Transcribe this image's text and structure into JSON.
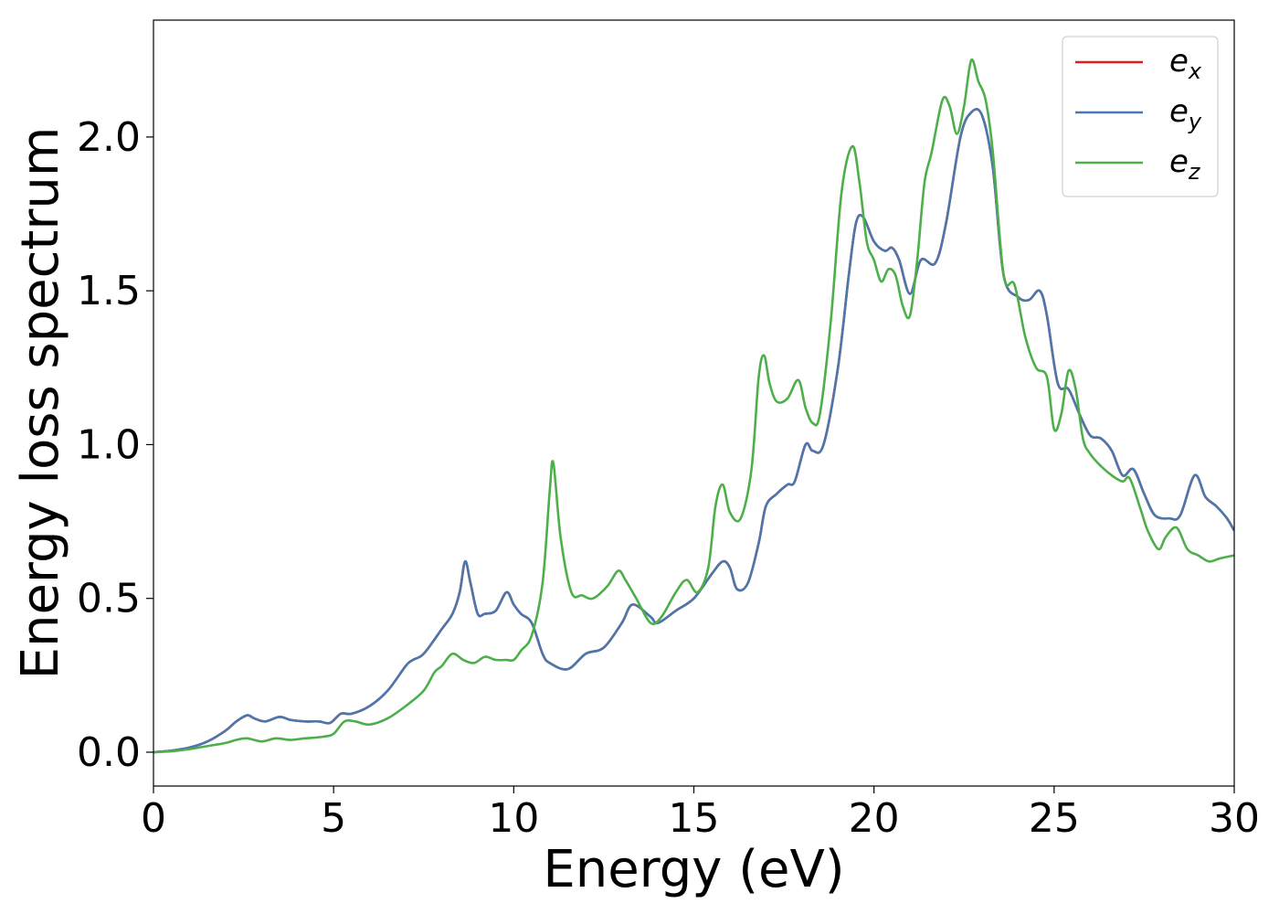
{
  "chart_data": {
    "type": "line",
    "xlabel": "Energy (eV)",
    "ylabel": "Energy loss spectrum",
    "xlim": [
      0,
      30
    ],
    "ylim": [
      -0.11,
      2.38
    ],
    "xticks": [
      0,
      5,
      10,
      15,
      20,
      25,
      30
    ],
    "xtick_labels": [
      "0",
      "5",
      "10",
      "15",
      "20",
      "25",
      "30"
    ],
    "yticks": [
      0.0,
      0.5,
      1.0,
      1.5,
      2.0
    ],
    "ytick_labels": [
      "0.0",
      "0.5",
      "1.0",
      "1.5",
      "2.0"
    ],
    "grid": false,
    "legend_position": "top-right",
    "series": [
      {
        "name": "e_x",
        "legend_base": "e",
        "legend_sub": "x",
        "color": "#e41a1c",
        "x": [
          0,
          0.5,
          1,
          1.5,
          2,
          2.3,
          2.6,
          2.8,
          3.1,
          3.5,
          3.8,
          4.2,
          4.6,
          4.9,
          5.2,
          5.5,
          6,
          6.5,
          7,
          7.2,
          7.5,
          8,
          8.3,
          8.5,
          8.65,
          8.8,
          9.0,
          9.2,
          9.5,
          9.8,
          10.0,
          10.2,
          10.5,
          10.8,
          11.0,
          11.5,
          12,
          12.5,
          13.0,
          13.3,
          13.8,
          14.0,
          14.5,
          15.0,
          15.5,
          15.8,
          16.0,
          16.2,
          16.5,
          16.8,
          17.0,
          17.3,
          17.6,
          17.8,
          18.1,
          18.3,
          18.6,
          19.0,
          19.3,
          19.5,
          19.7,
          20.0,
          20.3,
          20.5,
          20.7,
          21.0,
          21.3,
          21.7,
          22.0,
          22.4,
          22.7,
          23.0,
          23.3,
          23.6,
          24.0,
          24.3,
          24.6,
          24.8,
          25.1,
          25.4,
          25.7,
          26.0,
          26.3,
          26.6,
          26.9,
          27.2,
          27.5,
          27.8,
          28.2,
          28.5,
          28.9,
          29.2,
          29.5,
          29.8,
          30
        ],
        "y": [
          0,
          0.005,
          0.015,
          0.035,
          0.07,
          0.1,
          0.12,
          0.11,
          0.1,
          0.115,
          0.105,
          0.1,
          0.1,
          0.095,
          0.125,
          0.125,
          0.15,
          0.2,
          0.28,
          0.3,
          0.32,
          0.4,
          0.45,
          0.52,
          0.62,
          0.55,
          0.45,
          0.45,
          0.46,
          0.52,
          0.48,
          0.45,
          0.42,
          0.32,
          0.29,
          0.27,
          0.32,
          0.34,
          0.42,
          0.48,
          0.44,
          0.42,
          0.46,
          0.5,
          0.58,
          0.62,
          0.6,
          0.53,
          0.55,
          0.68,
          0.8,
          0.84,
          0.87,
          0.88,
          1.0,
          0.98,
          1.0,
          1.25,
          1.55,
          1.72,
          1.74,
          1.66,
          1.63,
          1.64,
          1.6,
          1.49,
          1.6,
          1.59,
          1.72,
          2.0,
          2.08,
          2.07,
          1.9,
          1.55,
          1.48,
          1.47,
          1.5,
          1.42,
          1.2,
          1.18,
          1.1,
          1.03,
          1.02,
          0.98,
          0.9,
          0.92,
          0.84,
          0.77,
          0.76,
          0.77,
          0.9,
          0.83,
          0.8,
          0.76,
          0.72
        ]
      },
      {
        "name": "e_y",
        "legend_base": "e",
        "legend_sub": "y",
        "color": "#4a78ad",
        "x": [
          0,
          0.5,
          1,
          1.5,
          2,
          2.3,
          2.6,
          2.8,
          3.1,
          3.5,
          3.8,
          4.2,
          4.6,
          4.9,
          5.2,
          5.5,
          6,
          6.5,
          7,
          7.2,
          7.5,
          8,
          8.3,
          8.5,
          8.65,
          8.8,
          9.0,
          9.2,
          9.5,
          9.8,
          10.0,
          10.2,
          10.5,
          10.8,
          11.0,
          11.5,
          12,
          12.5,
          13.0,
          13.3,
          13.8,
          14.0,
          14.5,
          15.0,
          15.5,
          15.8,
          16.0,
          16.2,
          16.5,
          16.8,
          17.0,
          17.3,
          17.6,
          17.8,
          18.1,
          18.3,
          18.6,
          19.0,
          19.3,
          19.5,
          19.7,
          20.0,
          20.3,
          20.5,
          20.7,
          21.0,
          21.3,
          21.7,
          22.0,
          22.4,
          22.7,
          23.0,
          23.3,
          23.6,
          24.0,
          24.3,
          24.6,
          24.8,
          25.1,
          25.4,
          25.7,
          26.0,
          26.3,
          26.6,
          26.9,
          27.2,
          27.5,
          27.8,
          28.2,
          28.5,
          28.9,
          29.2,
          29.5,
          29.8,
          30
        ],
        "y": [
          0,
          0.005,
          0.015,
          0.035,
          0.07,
          0.1,
          0.12,
          0.11,
          0.1,
          0.115,
          0.105,
          0.1,
          0.1,
          0.095,
          0.125,
          0.125,
          0.15,
          0.2,
          0.28,
          0.3,
          0.32,
          0.4,
          0.45,
          0.52,
          0.62,
          0.55,
          0.45,
          0.45,
          0.46,
          0.52,
          0.48,
          0.45,
          0.42,
          0.32,
          0.29,
          0.27,
          0.32,
          0.34,
          0.42,
          0.48,
          0.44,
          0.42,
          0.46,
          0.5,
          0.58,
          0.62,
          0.6,
          0.53,
          0.55,
          0.68,
          0.8,
          0.84,
          0.87,
          0.88,
          1.0,
          0.98,
          1.0,
          1.25,
          1.55,
          1.72,
          1.74,
          1.66,
          1.63,
          1.64,
          1.6,
          1.49,
          1.6,
          1.59,
          1.72,
          2.0,
          2.08,
          2.07,
          1.9,
          1.55,
          1.48,
          1.47,
          1.5,
          1.42,
          1.2,
          1.18,
          1.1,
          1.03,
          1.02,
          0.98,
          0.9,
          0.92,
          0.84,
          0.77,
          0.76,
          0.77,
          0.9,
          0.83,
          0.8,
          0.76,
          0.72
        ]
      },
      {
        "name": "e_z",
        "legend_base": "e",
        "legend_sub": "z",
        "color": "#4daf4a",
        "x": [
          0,
          0.5,
          1,
          1.5,
          2,
          2.3,
          2.6,
          3.0,
          3.4,
          3.8,
          4.2,
          4.7,
          5.0,
          5.3,
          5.6,
          6.0,
          6.5,
          7.0,
          7.5,
          7.8,
          8.0,
          8.3,
          8.6,
          8.9,
          9.2,
          9.5,
          9.8,
          10.0,
          10.2,
          10.5,
          10.8,
          11.0,
          11.1,
          11.3,
          11.6,
          11.9,
          12.2,
          12.6,
          12.9,
          13.1,
          13.4,
          13.8,
          14.1,
          14.5,
          14.8,
          15.1,
          15.4,
          15.6,
          15.8,
          16.0,
          16.3,
          16.6,
          16.8,
          16.95,
          17.1,
          17.3,
          17.6,
          17.9,
          18.1,
          18.3,
          18.5,
          18.8,
          19.1,
          19.4,
          19.6,
          19.8,
          20.0,
          20.2,
          20.4,
          20.6,
          20.8,
          21.0,
          21.2,
          21.4,
          21.6,
          21.9,
          22.1,
          22.3,
          22.5,
          22.7,
          22.9,
          23.1,
          23.3,
          23.6,
          23.9,
          24.2,
          24.5,
          24.8,
          25.0,
          25.2,
          25.4,
          25.6,
          25.8,
          26.0,
          26.3,
          26.6,
          26.9,
          27.1,
          27.4,
          27.6,
          27.9,
          28.1,
          28.4,
          28.7,
          29.0,
          29.3,
          29.6,
          30
        ],
        "y": [
          0,
          0.003,
          0.01,
          0.02,
          0.03,
          0.04,
          0.045,
          0.035,
          0.045,
          0.04,
          0.045,
          0.05,
          0.06,
          0.1,
          0.1,
          0.09,
          0.11,
          0.15,
          0.2,
          0.26,
          0.28,
          0.32,
          0.3,
          0.29,
          0.31,
          0.3,
          0.3,
          0.3,
          0.33,
          0.38,
          0.55,
          0.85,
          0.94,
          0.7,
          0.52,
          0.51,
          0.5,
          0.54,
          0.59,
          0.56,
          0.5,
          0.42,
          0.44,
          0.52,
          0.56,
          0.52,
          0.6,
          0.8,
          0.87,
          0.78,
          0.76,
          0.92,
          1.22,
          1.29,
          1.2,
          1.14,
          1.15,
          1.21,
          1.12,
          1.07,
          1.1,
          1.4,
          1.82,
          1.97,
          1.85,
          1.66,
          1.6,
          1.53,
          1.57,
          1.55,
          1.45,
          1.42,
          1.6,
          1.85,
          1.95,
          2.12,
          2.1,
          2.01,
          2.1,
          2.25,
          2.18,
          2.12,
          1.95,
          1.55,
          1.52,
          1.35,
          1.25,
          1.22,
          1.05,
          1.1,
          1.24,
          1.18,
          1.02,
          0.97,
          0.93,
          0.9,
          0.88,
          0.89,
          0.79,
          0.72,
          0.66,
          0.7,
          0.73,
          0.66,
          0.64,
          0.62,
          0.63,
          0.64
        ]
      }
    ]
  }
}
